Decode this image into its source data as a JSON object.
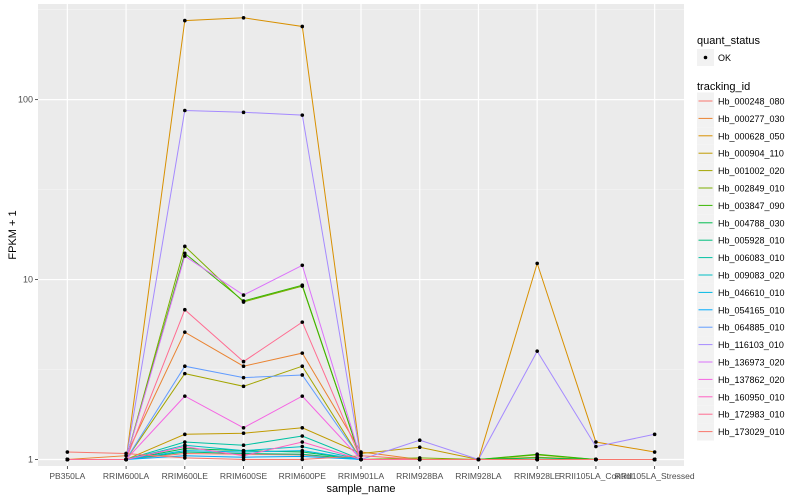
{
  "chart_data": {
    "type": "line",
    "title": "",
    "xlabel": "sample_name",
    "ylabel": "FPKM + 1",
    "yscale": "log10",
    "ylim": [
      0.92,
      340
    ],
    "yticks": [
      1,
      10,
      100
    ],
    "ytick_labels": [
      "1",
      "10",
      "100"
    ],
    "grid": true,
    "legend_position": "right",
    "categories": [
      "PB350LA",
      "RRIM600LA",
      "RRIM600LE",
      "RRIM600SE",
      "RRIM600PE",
      "RRIM901LA",
      "RRIM928BA",
      "RRIM928LA",
      "RRIM928LE",
      "RRII105LA_Control",
      "RRII105LA_Stressed"
    ],
    "quant_status": {
      "title": "quant_status",
      "entries": [
        "OK"
      ]
    },
    "tracking_title": "tracking_id",
    "series": [
      {
        "name": "Hb_000248_080",
        "color": "#F8766D",
        "values": [
          1.0,
          1.0,
          1.08,
          1.07,
          1.06,
          1.0,
          1.0,
          1.0,
          1.0,
          1.0,
          1.0
        ]
      },
      {
        "name": "Hb_000277_030",
        "color": "#EA8331",
        "values": [
          1.0,
          1.05,
          5.1,
          3.3,
          3.9,
          1.1,
          1.0,
          1.0,
          1.0,
          1.0,
          1.0
        ]
      },
      {
        "name": "Hb_000628_050",
        "color": "#D89000",
        "values": [
          1.0,
          1.0,
          275,
          285,
          255,
          1.0,
          1.0,
          1.0,
          12.3,
          1.25,
          1.1
        ]
      },
      {
        "name": "Hb_000904_110",
        "color": "#C09B00",
        "values": [
          1.0,
          1.0,
          1.38,
          1.4,
          1.5,
          1.08,
          1.17,
          1.0,
          1.03,
          1.0,
          1.0
        ]
      },
      {
        "name": "Hb_001002_020",
        "color": "#A3A500",
        "values": [
          1.0,
          1.0,
          3.0,
          2.55,
          3.3,
          1.0,
          1.0,
          1.0,
          1.0,
          1.0,
          1.0
        ]
      },
      {
        "name": "Hb_002849_010",
        "color": "#7CAE00",
        "values": [
          1.0,
          1.0,
          15.3,
          7.5,
          9.2,
          1.0,
          1.02,
          1.0,
          1.06,
          1.0,
          1.0
        ]
      },
      {
        "name": "Hb_003847_090",
        "color": "#39B600",
        "values": [
          1.0,
          1.0,
          14.0,
          7.6,
          9.3,
          1.0,
          1.0,
          1.0,
          1.07,
          1.0,
          1.0
        ]
      },
      {
        "name": "Hb_004788_030",
        "color": "#00BB4E",
        "values": [
          1.0,
          1.0,
          1.15,
          1.12,
          1.1,
          1.0,
          1.0,
          1.0,
          1.02,
          1.0,
          1.0
        ]
      },
      {
        "name": "Hb_005928_010",
        "color": "#00BF7D",
        "values": [
          1.0,
          1.0,
          1.1,
          1.08,
          1.07,
          1.0,
          1.0,
          1.0,
          1.0,
          1.0,
          1.0
        ]
      },
      {
        "name": "Hb_006083_010",
        "color": "#00C1A3",
        "values": [
          1.0,
          1.0,
          1.25,
          1.2,
          1.35,
          1.0,
          1.0,
          1.0,
          1.0,
          1.0,
          1.0
        ]
      },
      {
        "name": "Hb_009083_020",
        "color": "#00BFC4",
        "values": [
          1.0,
          1.0,
          1.2,
          1.12,
          1.18,
          1.0,
          1.0,
          1.0,
          1.0,
          1.0,
          1.0
        ]
      },
      {
        "name": "Hb_046610_010",
        "color": "#00B8E5",
        "values": [
          1.0,
          1.0,
          1.12,
          1.1,
          1.12,
          1.0,
          1.0,
          1.0,
          1.0,
          1.0,
          1.0
        ]
      },
      {
        "name": "Hb_054165_010",
        "color": "#00ABFD",
        "values": [
          1.0,
          1.0,
          1.05,
          1.03,
          1.04,
          1.0,
          1.0,
          1.0,
          1.0,
          1.0,
          1.0
        ]
      },
      {
        "name": "Hb_064885_010",
        "color": "#619CFF",
        "values": [
          1.0,
          1.0,
          3.3,
          2.85,
          2.95,
          1.0,
          1.0,
          1.0,
          1.0,
          1.0,
          1.0
        ]
      },
      {
        "name": "Hb_116103_010",
        "color": "#A58AFF",
        "values": [
          1.0,
          1.0,
          87,
          85,
          82,
          1.0,
          1.28,
          1.0,
          4.0,
          1.18,
          1.38
        ]
      },
      {
        "name": "Hb_136973_020",
        "color": "#DB72FB",
        "values": [
          1.0,
          1.0,
          13.5,
          8.2,
          12.0,
          1.0,
          1.0,
          1.0,
          1.0,
          1.0,
          1.0
        ]
      },
      {
        "name": "Hb_137862_020",
        "color": "#F564E3",
        "values": [
          1.0,
          1.0,
          2.25,
          1.5,
          2.25,
          1.0,
          1.0,
          1.0,
          1.0,
          1.0,
          1.0
        ]
      },
      {
        "name": "Hb_160950_010",
        "color": "#FF61C3",
        "values": [
          1.0,
          1.0,
          1.18,
          1.05,
          1.25,
          1.0,
          1.0,
          1.0,
          1.0,
          1.0,
          1.0
        ]
      },
      {
        "name": "Hb_172983_010",
        "color": "#FF6C91",
        "values": [
          1.0,
          1.0,
          6.8,
          3.5,
          5.8,
          1.0,
          1.0,
          1.0,
          1.0,
          1.0,
          1.0
        ]
      },
      {
        "name": "Hb_173029_010",
        "color": "#F8766D",
        "values": [
          1.1,
          1.08,
          1.02,
          1.0,
          1.0,
          1.05,
          1.0,
          1.0,
          1.0,
          1.0,
          1.0
        ]
      }
    ]
  }
}
